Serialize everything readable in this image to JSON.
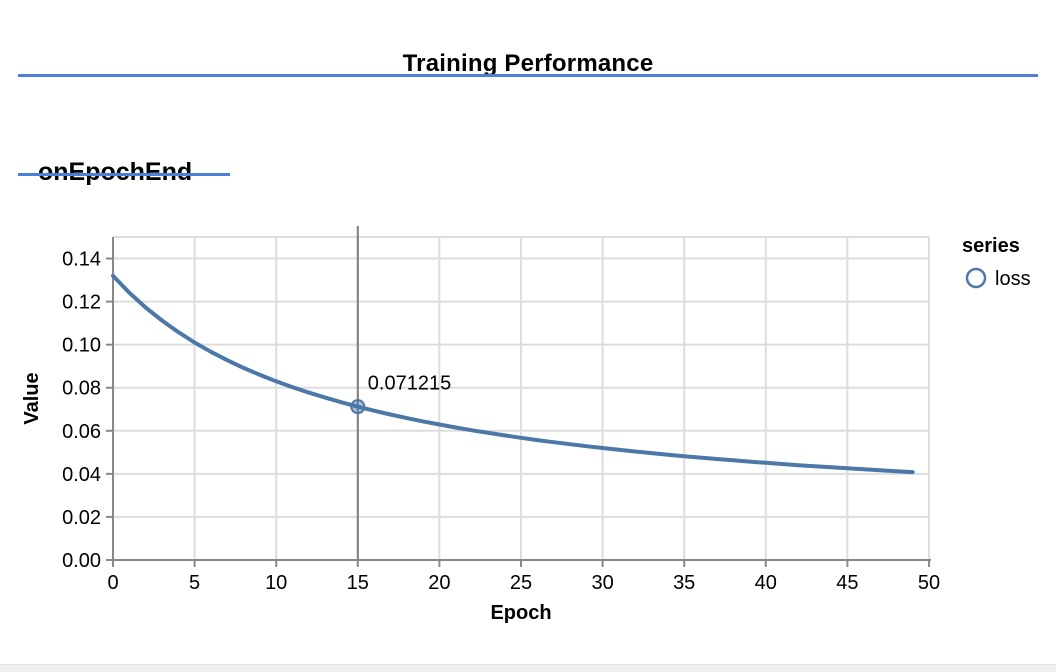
{
  "page": {
    "title": "Training Performance",
    "section_heading": "onEpochEnd",
    "accent_color": "#4a80d8"
  },
  "chart_data": {
    "type": "line",
    "title": "",
    "xlabel": "Epoch",
    "ylabel": "Value",
    "xlim": [
      0,
      50
    ],
    "ylim": [
      0,
      0.15
    ],
    "x_ticks": [
      0,
      5,
      10,
      15,
      20,
      25,
      30,
      35,
      40,
      45,
      50
    ],
    "y_ticks": [
      0.0,
      0.02,
      0.04,
      0.06,
      0.08,
      0.1,
      0.12,
      0.14
    ],
    "grid": true,
    "legend": {
      "title": "series",
      "position": "right",
      "entries": [
        {
          "label": "loss",
          "color": "#4c78a8",
          "marker": "open-circle"
        }
      ]
    },
    "series": [
      {
        "name": "loss",
        "color": "#4c78a8",
        "x": [
          0,
          1,
          2,
          3,
          4,
          5,
          6,
          7,
          8,
          9,
          10,
          11,
          12,
          13,
          14,
          15,
          16,
          17,
          18,
          19,
          20,
          21,
          22,
          23,
          24,
          25,
          26,
          27,
          28,
          29,
          30,
          31,
          32,
          33,
          34,
          35,
          36,
          37,
          38,
          39,
          40,
          41,
          42,
          43,
          44,
          45,
          46,
          47,
          48,
          49
        ],
        "values": [
          0.132028,
          0.124156,
          0.117275,
          0.111211,
          0.105825,
          0.101011,
          0.096681,
          0.092766,
          0.08921,
          0.085964,
          0.082991,
          0.080257,
          0.077733,
          0.075398,
          0.07323,
          0.071215,
          0.069331,
          0.067571,
          0.065921,
          0.064371,
          0.062913,
          0.061539,
          0.060242,
          0.059014,
          0.057852,
          0.05675,
          0.055702,
          0.054706,
          0.053758,
          0.052854,
          0.051991,
          0.051166,
          0.050378,
          0.049623,
          0.0489,
          0.048206,
          0.04754,
          0.0469,
          0.046285,
          0.045693,
          0.045123,
          0.044574,
          0.044045,
          0.043534,
          0.043041,
          0.042565,
          0.042104,
          0.041659,
          0.041228,
          0.040811
        ]
      }
    ],
    "cursor": {
      "x": 15,
      "y": 0.071215,
      "label": "0.071215",
      "series": "loss"
    },
    "colors": {
      "grid": "#dddddd",
      "axis": "#888888",
      "crosshair": "#7f7f7f",
      "text": "#000000"
    }
  }
}
